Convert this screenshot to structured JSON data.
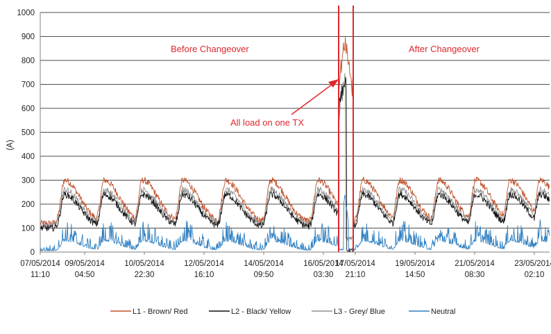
{
  "chart_data": {
    "type": "line",
    "title": "",
    "xlabel": "",
    "ylabel": "(A)",
    "ylim": [
      0,
      1000
    ],
    "y_ticks": [
      "0",
      "100",
      "200",
      "300",
      "400",
      "500",
      "600",
      "700",
      "800",
      "900",
      "1000"
    ],
    "x_tick_labels": [
      {
        "date": "07/05/2014",
        "time": "11:10"
      },
      {
        "date": "09/05/2014",
        "time": "04:50"
      },
      {
        "date": "10/05/2014",
        "time": "22:30"
      },
      {
        "date": "12/05/2014",
        "time": "16:10"
      },
      {
        "date": "14/05/2014",
        "time": "09:50"
      },
      {
        "date": "16/05/2014",
        "time": "03:30"
      },
      {
        "date": "17/05/2014",
        "time": "21:10"
      },
      {
        "date": "19/05/2014",
        "time": "14:50"
      },
      {
        "date": "21/05/2014",
        "time": "08:30"
      },
      {
        "date": "23/05/2014",
        "time": "02:10"
      }
    ],
    "grid": true,
    "legend_position": "bottom",
    "series": [
      {
        "name": "L1 - Brown/ Red",
        "color": "#c0502a",
        "daily_peak_A": 300,
        "daily_min_A": 120,
        "changeover_peak_A": 930
      },
      {
        "name": "L2 - Black/ Yellow",
        "color": "#111111",
        "daily_peak_A": 240,
        "daily_min_A": 100,
        "changeover_peak_A": 780
      },
      {
        "name": "L3 - Grey/ Blue",
        "color": "#909090",
        "daily_peak_A": 260,
        "daily_min_A": 110,
        "changeover_peak_A": 760
      },
      {
        "name": "Neutral",
        "color": "#2f7fc1",
        "daily_peak_A": 90,
        "daily_min_A": 5,
        "changeover_peak_A": 230
      }
    ],
    "changeover_window": {
      "start": "17/05/2014 02:00",
      "end": "17/05/2014 13:00",
      "color": "#e0262d"
    },
    "annotations": [
      {
        "text": "Before Changeover"
      },
      {
        "text": "After Changeover"
      },
      {
        "text": "All load on one TX",
        "points_to_A": 720
      }
    ]
  }
}
